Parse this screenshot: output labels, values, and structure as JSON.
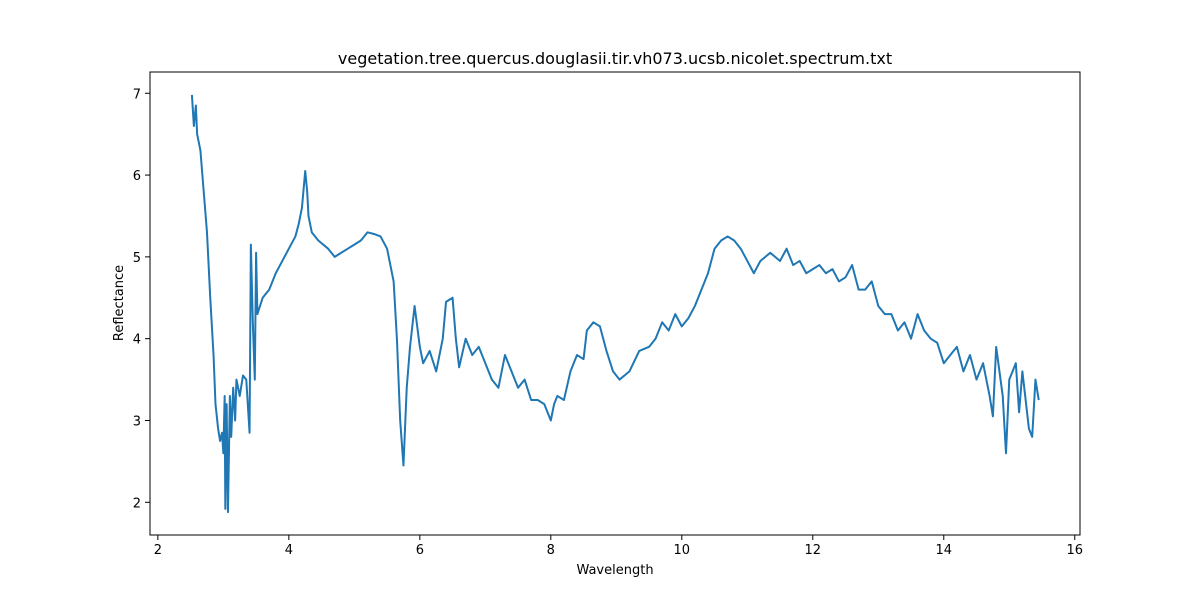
{
  "chart_data": {
    "type": "line",
    "title": "vegetation.tree.quercus.douglasii.tir.vh073.ucsb.nicolet.spectrum.txt",
    "x_label": "Wavelength",
    "y_label": "Reflectance",
    "color": "#1f77b4",
    "x": [
      2.52,
      2.55,
      2.58,
      2.6,
      2.65,
      2.7,
      2.75,
      2.8,
      2.85,
      2.88,
      2.92,
      2.95,
      2.98,
      3.0,
      3.02,
      3.03,
      3.05,
      3.07,
      3.1,
      3.12,
      3.15,
      3.18,
      3.2,
      3.25,
      3.3,
      3.35,
      3.4,
      3.42,
      3.45,
      3.48,
      3.5,
      3.52,
      3.6,
      3.7,
      3.8,
      3.9,
      4.0,
      4.1,
      4.15,
      4.2,
      4.25,
      4.28,
      4.3,
      4.35,
      4.45,
      4.6,
      4.7,
      4.8,
      4.9,
      5.0,
      5.1,
      5.2,
      5.3,
      5.4,
      5.5,
      5.6,
      5.65,
      5.7,
      5.75,
      5.8,
      5.85,
      5.92,
      6.0,
      6.05,
      6.15,
      6.25,
      6.35,
      6.4,
      6.5,
      6.55,
      6.6,
      6.7,
      6.8,
      6.9,
      7.0,
      7.1,
      7.2,
      7.3,
      7.4,
      7.5,
      7.6,
      7.7,
      7.8,
      7.9,
      8.0,
      8.05,
      8.1,
      8.2,
      8.3,
      8.4,
      8.5,
      8.55,
      8.65,
      8.75,
      8.85,
      8.95,
      9.05,
      9.2,
      9.35,
      9.5,
      9.6,
      9.7,
      9.8,
      9.9,
      10.0,
      10.1,
      10.2,
      10.3,
      10.4,
      10.5,
      10.6,
      10.7,
      10.8,
      10.9,
      11.0,
      11.1,
      11.2,
      11.35,
      11.5,
      11.6,
      11.7,
      11.8,
      11.9,
      12.0,
      12.1,
      12.2,
      12.3,
      12.4,
      12.5,
      12.6,
      12.7,
      12.8,
      12.9,
      13.0,
      13.1,
      13.2,
      13.3,
      13.4,
      13.5,
      13.6,
      13.7,
      13.8,
      13.9,
      14.0,
      14.1,
      14.2,
      14.3,
      14.4,
      14.5,
      14.6,
      14.7,
      14.75,
      14.8,
      14.9,
      14.95,
      15.0,
      15.1,
      15.15,
      15.2,
      15.3,
      15.35,
      15.4,
      15.45
    ],
    "values": [
      6.98,
      6.6,
      6.85,
      6.5,
      6.3,
      5.8,
      5.3,
      4.5,
      3.8,
      3.2,
      2.9,
      2.75,
      2.85,
      2.6,
      3.3,
      1.92,
      3.2,
      1.88,
      3.3,
      2.8,
      3.4,
      3.0,
      3.5,
      3.3,
      3.55,
      3.5,
      2.85,
      5.15,
      4.2,
      3.5,
      5.05,
      4.3,
      4.5,
      4.6,
      4.8,
      4.95,
      5.1,
      5.25,
      5.4,
      5.6,
      6.05,
      5.8,
      5.5,
      5.3,
      5.2,
      5.1,
      5.0,
      5.05,
      5.1,
      5.15,
      5.2,
      5.3,
      5.28,
      5.25,
      5.1,
      4.7,
      4.0,
      3.0,
      2.45,
      3.4,
      3.9,
      4.4,
      3.9,
      3.7,
      3.85,
      3.6,
      4.0,
      4.45,
      4.5,
      4.0,
      3.65,
      4.0,
      3.8,
      3.9,
      3.7,
      3.5,
      3.4,
      3.8,
      3.6,
      3.4,
      3.5,
      3.25,
      3.25,
      3.2,
      3.0,
      3.2,
      3.3,
      3.25,
      3.6,
      3.8,
      3.75,
      4.1,
      4.2,
      4.15,
      3.85,
      3.6,
      3.5,
      3.6,
      3.85,
      3.9,
      4.0,
      4.2,
      4.1,
      4.3,
      4.15,
      4.25,
      4.4,
      4.6,
      4.8,
      5.1,
      5.2,
      5.25,
      5.2,
      5.1,
      4.95,
      4.8,
      4.95,
      5.05,
      4.95,
      5.1,
      4.9,
      4.95,
      4.8,
      4.85,
      4.9,
      4.8,
      4.85,
      4.7,
      4.75,
      4.9,
      4.6,
      4.6,
      4.7,
      4.4,
      4.3,
      4.3,
      4.1,
      4.2,
      4.0,
      4.3,
      4.1,
      4.0,
      3.95,
      3.7,
      3.8,
      3.9,
      3.6,
      3.8,
      3.5,
      3.7,
      3.3,
      3.05,
      3.9,
      3.3,
      2.6,
      3.5,
      3.7,
      3.1,
      3.6,
      2.9,
      2.8,
      3.5,
      3.25
    ],
    "xlim": [
      1.88,
      16.08
    ],
    "ylim": [
      1.6,
      7.26
    ],
    "xticks": [
      2,
      4,
      6,
      8,
      10,
      12,
      14,
      16
    ],
    "yticks": [
      2,
      3,
      4,
      5,
      6,
      7
    ]
  }
}
